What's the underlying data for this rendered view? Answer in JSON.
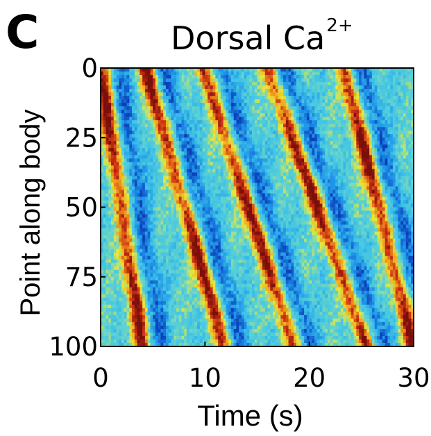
{
  "panel_label": "C",
  "title": {
    "text": "Dorsal Ca",
    "superscript": "2+"
  },
  "chart_data": {
    "type": "heatmap",
    "title": "Dorsal Ca2+",
    "xlabel": "Time (s)",
    "ylabel": "Point along body",
    "xlim": [
      0,
      30
    ],
    "ylim": [
      0,
      100
    ],
    "y_axis_inverted": true,
    "xticks": [
      0,
      10,
      20,
      30
    ],
    "yticks": [
      0,
      25,
      50,
      75,
      100
    ],
    "colormap": "jet",
    "colors": [
      "#0b3fb8",
      "#1e90e8",
      "#3fc3e6",
      "#62d3cf",
      "#e8e83a",
      "#f0a31e",
      "#cf3212",
      "#7a0f0b"
    ],
    "grid": false,
    "wave_ridges": [
      {
        "x_at_top": 0.0,
        "x_at_bottom": 4.0,
        "description": "high activity band"
      },
      {
        "x_at_top": 4.3,
        "x_at_bottom": 11.8,
        "description": "high activity band"
      },
      {
        "x_at_top": 9.8,
        "x_at_bottom": 18.5,
        "description": "high activity band"
      },
      {
        "x_at_top": 16.0,
        "x_at_bottom": 25.5,
        "description": "high activity band"
      },
      {
        "x_at_top": 23.3,
        "x_at_bottom": 30.0,
        "description": "high activity band"
      }
    ]
  }
}
